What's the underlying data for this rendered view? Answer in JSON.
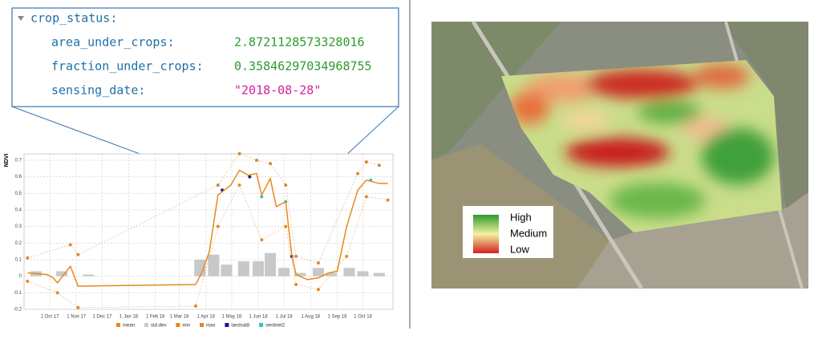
{
  "tree": {
    "root": "crop_status:",
    "items": [
      {
        "key": "area_under_crops:",
        "value": "2.8721128573328016",
        "color": "#2e9a2e"
      },
      {
        "key": "fraction_under_crops:",
        "value": "0.35846297034968755",
        "color": "#2e9a2e"
      },
      {
        "key": "sensing_date:",
        "value": "\"2018-08-28\"",
        "color": "#d21f9a"
      }
    ]
  },
  "map_legend": {
    "labels": [
      "High",
      "Medium",
      "Low"
    ],
    "colors": [
      "#2e9a2e",
      "#f2f2a0",
      "#d42020"
    ]
  },
  "chart_data": {
    "type": "line",
    "ylabel": "NDVI",
    "grid": true,
    "xlim": [
      "2017-09-01",
      "2018-11-05"
    ],
    "xticks": [
      {
        "value": "2017-10-01",
        "label": "1 Oct 17"
      },
      {
        "value": "2017-11-01",
        "label": "1 Nov 17"
      },
      {
        "value": "2017-12-01",
        "label": "1 Dec 17"
      },
      {
        "value": "2018-01-01",
        "label": "1 Jan 18"
      },
      {
        "value": "2018-02-01",
        "label": "1 Feb 18"
      },
      {
        "value": "2018-03-01",
        "label": "1 Mar 18"
      },
      {
        "value": "2018-04-01",
        "label": "1 Apr 18"
      },
      {
        "value": "2018-05-01",
        "label": "1 May 18"
      },
      {
        "value": "2018-06-01",
        "label": "1 Jun 18"
      },
      {
        "value": "2018-07-01",
        "label": "1 Jul 18"
      },
      {
        "value": "2018-08-01",
        "label": "1 Aug 18"
      },
      {
        "value": "2018-09-01",
        "label": "1 Sep 18"
      },
      {
        "value": "2018-10-01",
        "label": "1 Oct 18"
      }
    ],
    "ylim": [
      -0.2,
      0.7
    ],
    "yticks": [
      -0.2,
      -0.1,
      0,
      0.1,
      0.2,
      0.3,
      0.4,
      0.5,
      0.6,
      0.7
    ],
    "series": [
      {
        "name": "mean",
        "color": "#e8891c",
        "style": "line",
        "x": [
          "2017-09-05",
          "2017-09-28",
          "2017-10-05",
          "2017-10-10",
          "2017-10-25",
          "2017-11-03",
          "2018-03-20",
          "2018-03-28",
          "2018-04-05",
          "2018-04-15",
          "2018-04-30",
          "2018-05-10",
          "2018-05-20",
          "2018-05-30",
          "2018-06-05",
          "2018-06-15",
          "2018-06-22",
          "2018-07-03",
          "2018-07-10",
          "2018-07-15",
          "2018-07-28",
          "2018-08-10",
          "2018-08-22",
          "2018-09-01",
          "2018-09-12",
          "2018-09-25",
          "2018-10-05",
          "2018-10-20",
          "2018-10-30"
        ],
        "values": [
          0.02,
          0.01,
          -0.01,
          -0.04,
          0.06,
          -0.06,
          -0.05,
          0.03,
          0.15,
          0.49,
          0.55,
          0.64,
          0.61,
          0.62,
          0.49,
          0.59,
          0.42,
          0.45,
          0.13,
          0.01,
          -0.02,
          -0.01,
          0.02,
          0.03,
          0.3,
          0.52,
          0.58,
          0.56,
          0.56
        ]
      },
      {
        "name": "std.dev",
        "color": "#c8c8c8",
        "style": "bar",
        "x": [
          "2017-09-15",
          "2017-10-15",
          "2017-11-15",
          "2018-03-25",
          "2018-04-10",
          "2018-04-25",
          "2018-05-15",
          "2018-06-01",
          "2018-06-15",
          "2018-07-01",
          "2018-07-20",
          "2018-08-10",
          "2018-08-25",
          "2018-09-15",
          "2018-10-01",
          "2018-10-20"
        ],
        "values": [
          0.03,
          0.03,
          0.01,
          0.1,
          0.13,
          0.07,
          0.09,
          0.09,
          0.14,
          0.05,
          0.02,
          0.05,
          0.02,
          0.05,
          0.03,
          0.02
        ]
      },
      {
        "name": "min",
        "color": "#e8891c",
        "style": "points",
        "x": [
          "2017-09-05",
          "2017-10-10",
          "2017-11-03",
          "2018-03-20",
          "2018-04-15",
          "2018-05-10",
          "2018-06-05",
          "2018-07-03",
          "2018-07-15",
          "2018-08-10",
          "2018-09-12",
          "2018-10-05",
          "2018-10-30"
        ],
        "values": [
          -0.03,
          -0.1,
          -0.19,
          -0.18,
          0.3,
          0.55,
          0.22,
          0.3,
          -0.05,
          -0.08,
          0.12,
          0.48,
          0.46
        ]
      },
      {
        "name": "max",
        "color": "#d98a2b",
        "style": "points",
        "x": [
          "2017-09-05",
          "2017-10-25",
          "2017-11-03",
          "2018-04-15",
          "2018-05-10",
          "2018-05-30",
          "2018-06-15",
          "2018-07-03",
          "2018-07-15",
          "2018-08-10",
          "2018-09-25",
          "2018-10-05",
          "2018-10-20"
        ],
        "values": [
          0.11,
          0.19,
          0.13,
          0.55,
          0.74,
          0.7,
          0.68,
          0.55,
          0.12,
          0.08,
          0.62,
          0.69,
          0.67
        ]
      },
      {
        "name": "landsat8",
        "color": "#1a1a8c",
        "style": "points",
        "x": [
          "2018-04-20",
          "2018-05-22",
          "2018-07-10"
        ],
        "values": [
          0.52,
          0.6,
          0.12
        ]
      },
      {
        "name": "sentinel2",
        "color": "#2ec4c4",
        "style": "points",
        "x": [
          "2018-06-05",
          "2018-07-03",
          "2018-10-10"
        ],
        "values": [
          0.48,
          0.45,
          0.58
        ]
      }
    ]
  }
}
